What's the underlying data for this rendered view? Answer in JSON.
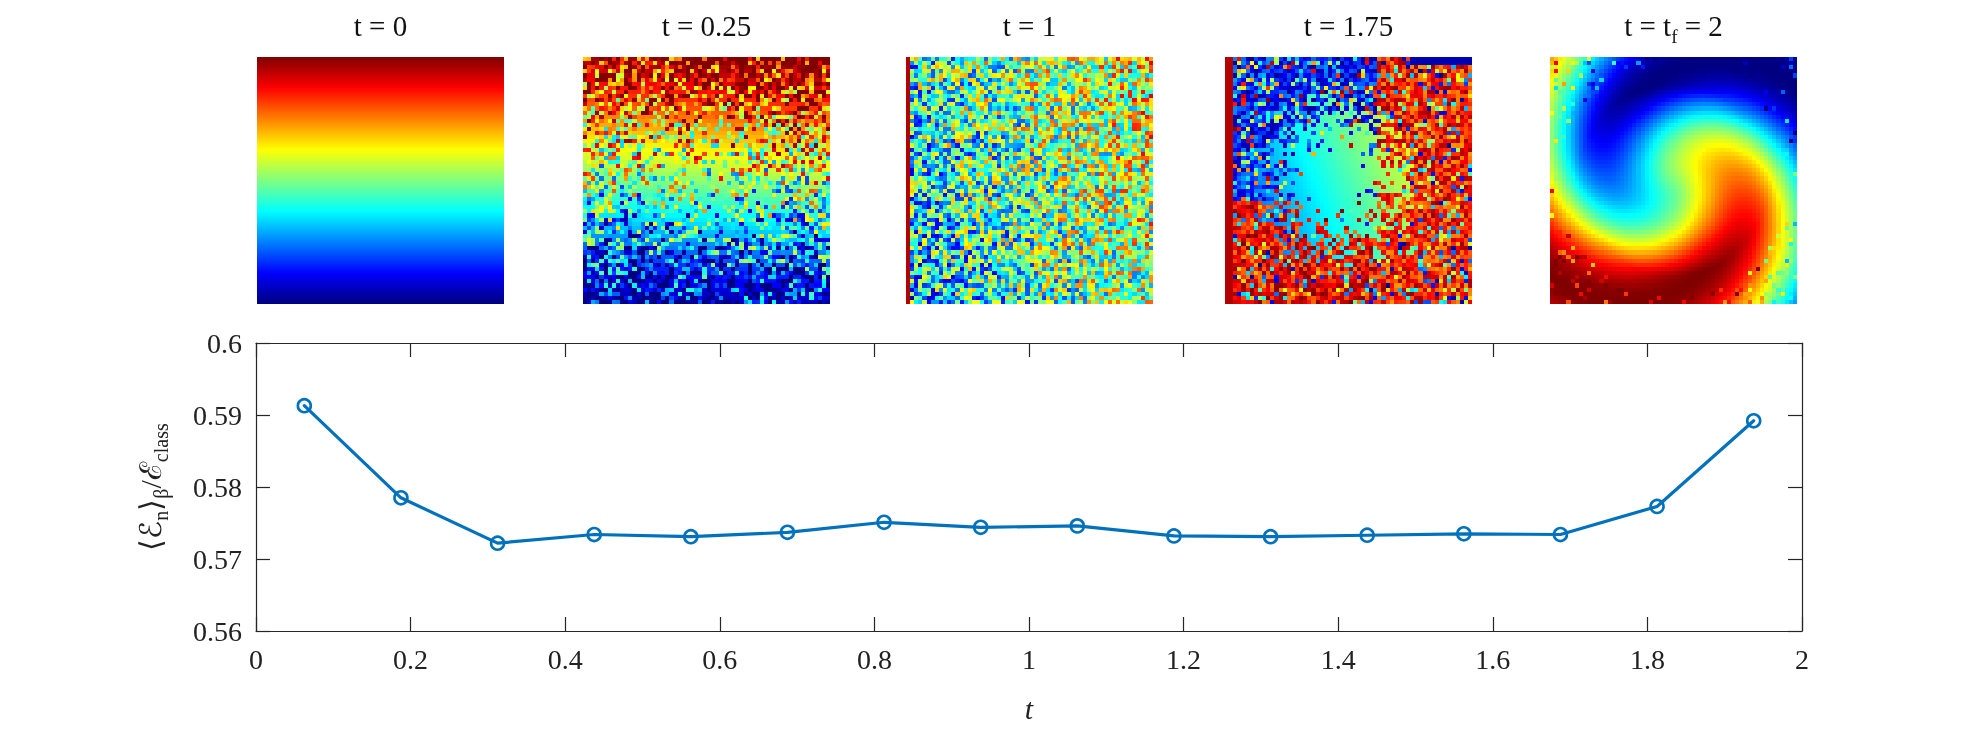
{
  "chart_data": [
    {
      "type": "other",
      "title": "t = 0"
    },
    {
      "type": "other",
      "title": "t = 0.25"
    },
    {
      "type": "other",
      "title": "t = 1"
    },
    {
      "type": "other",
      "title": "t = 1.75"
    },
    {
      "type": "other",
      "title": "t = t$_{f}$ = 2"
    },
    {
      "type": "line",
      "xlabel": "t",
      "ylabel": "⟨ℰ$_{n}$⟩$_{β}$/ℰ$_{class}$",
      "x": [
        0.0625,
        0.1875,
        0.3125,
        0.4375,
        0.5625,
        0.6875,
        0.8125,
        0.9375,
        1.0625,
        1.1875,
        1.3125,
        1.4375,
        1.5625,
        1.6875,
        1.8125,
        1.9375
      ],
      "series": [
        {
          "color": "#0072bd",
          "values": [
            0.5913,
            0.5785,
            0.5722,
            0.5734,
            0.5731,
            0.5737,
            0.5751,
            0.5744,
            0.5746,
            0.5732,
            0.5731,
            0.5733,
            0.5735,
            0.5734,
            0.5773,
            0.5892
          ]
        }
      ],
      "xlim": [
        0,
        2
      ],
      "xticks": [
        0,
        0.2,
        0.4,
        0.6,
        0.8,
        1,
        1.2,
        1.4,
        1.6,
        1.8,
        2
      ],
      "ylim": [
        0.56,
        0.6
      ],
      "yticks": [
        0.56,
        0.57,
        0.58,
        0.59,
        0.6
      ],
      "marker": "circle",
      "line_style": "solid"
    }
  ]
}
